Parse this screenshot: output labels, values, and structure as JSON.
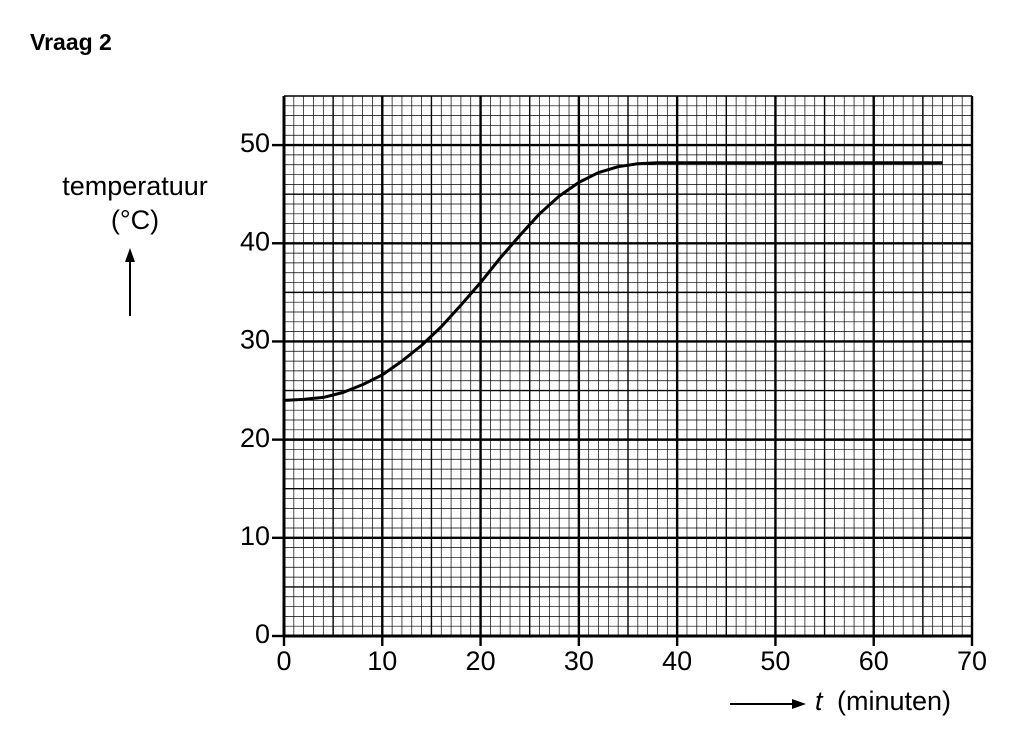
{
  "chart_data": {
    "type": "line",
    "title": "Vraag 2",
    "ylabel": [
      "temperatuur",
      "(°C)"
    ],
    "xlabel_symbol": "t",
    "xlabel": "(minuten)",
    "x": [
      0,
      2,
      4,
      6,
      8,
      10,
      12,
      14,
      16,
      18,
      20,
      22,
      24,
      26,
      28,
      30,
      32,
      34,
      36,
      38,
      40,
      50,
      60,
      67
    ],
    "values": [
      24,
      24.1,
      24.3,
      24.8,
      25.6,
      26.6,
      28,
      29.6,
      31.5,
      33.7,
      36,
      38.5,
      40.8,
      43,
      44.8,
      46.2,
      47.2,
      47.8,
      48.1,
      48.2,
      48.2,
      48.2,
      48.2,
      48.2
    ],
    "color": "#000000",
    "xlim": [
      0,
      70
    ],
    "ylim": [
      0,
      55
    ],
    "xticks": [
      0,
      10,
      20,
      30,
      40,
      50,
      60,
      70
    ],
    "yticks": [
      0,
      10,
      20,
      30,
      40,
      50
    ],
    "grid": true
  }
}
